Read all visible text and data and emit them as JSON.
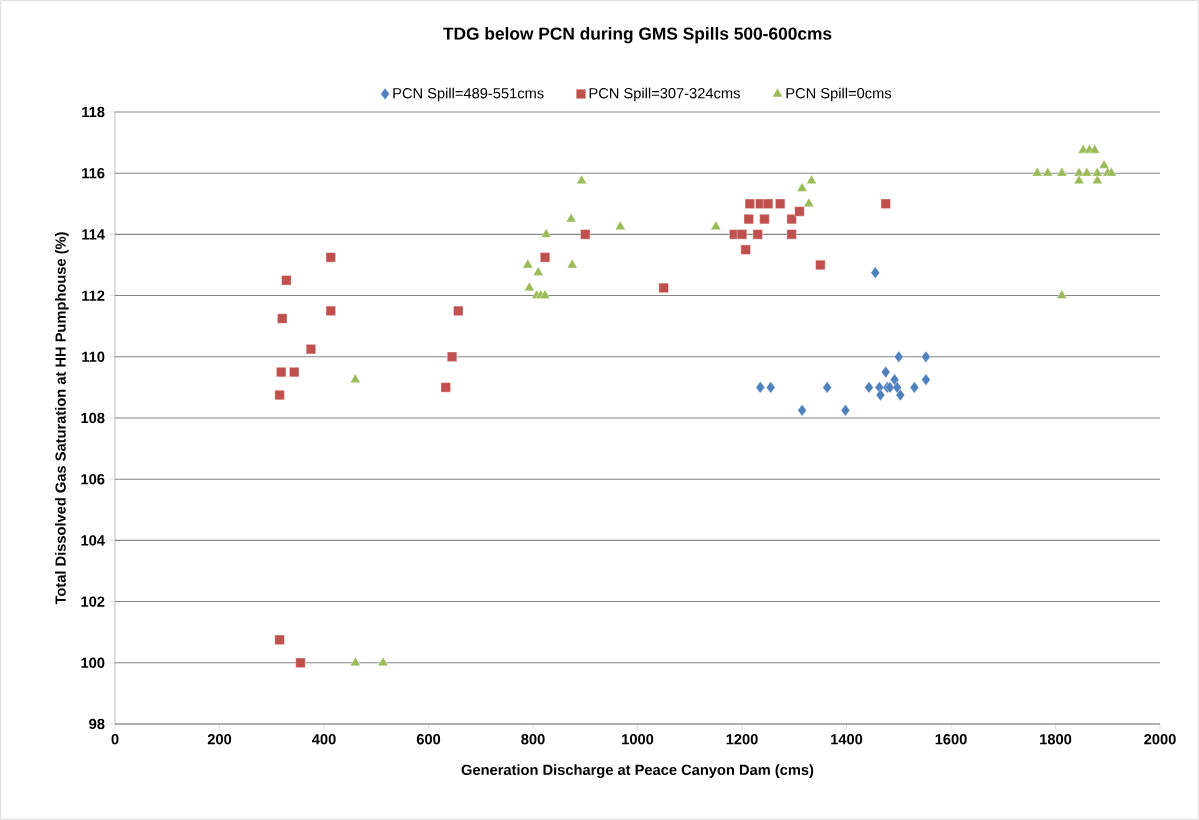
{
  "chart_data": {
    "type": "scatter",
    "title": "TDG below PCN during GMS Spills 500-600cms",
    "xlabel": "Generation Discharge at Peace Canyon Dam (cms)",
    "ylabel": "Total Dissolved Gas  Saturation at HH Pumphouse (%)",
    "xlim": [
      0,
      2000
    ],
    "ylim": [
      98,
      118
    ],
    "xticks": [
      0,
      200,
      400,
      600,
      800,
      1000,
      1200,
      1400,
      1600,
      1800,
      2000
    ],
    "yticks": [
      98,
      100,
      102,
      104,
      106,
      108,
      110,
      112,
      114,
      116,
      118
    ],
    "grid": "y",
    "legend": "top",
    "series": [
      {
        "name": "PCN Spill=489-551cms",
        "color": "#4f81bd",
        "marker": "diamond",
        "x": [
          1455,
          1235,
          1255,
          1363,
          1315,
          1398,
          1443,
          1463,
          1465,
          1475,
          1478,
          1483,
          1492,
          1497,
          1500,
          1503,
          1530,
          1552,
          1552
        ],
        "values": [
          112.75,
          109,
          109,
          109,
          108.25,
          108.25,
          109,
          109,
          108.75,
          109.5,
          109,
          109,
          109.25,
          109,
          110,
          108.75,
          109,
          109.25,
          110
        ]
      },
      {
        "name": "PCN Spill=307-324cms",
        "color": "#c0504d",
        "marker": "square",
        "x": [
          315,
          318,
          320,
          328,
          343,
          375,
          413,
          413,
          633,
          645,
          657,
          823,
          900,
          1050,
          1185,
          1207,
          1213,
          1215,
          1230,
          1235,
          1243,
          1250,
          1273,
          1295,
          1295,
          1310,
          1350,
          1475,
          315,
          355,
          1200
        ],
        "values": [
          108.75,
          109.5,
          111.25,
          112.5,
          109.5,
          110.25,
          113.25,
          111.5,
          109,
          110,
          111.5,
          113.25,
          114,
          112.25,
          114,
          113.5,
          114.5,
          115,
          114,
          115,
          114.5,
          115,
          115,
          114.5,
          114,
          114.75,
          113,
          115,
          100.75,
          100,
          114
        ]
      },
      {
        "name": "PCN Spill=0cms",
        "color": "#9bbb59",
        "marker": "triangle",
        "x": [
          460,
          460,
          513,
          790,
          793,
          807,
          810,
          815,
          823,
          825,
          873,
          875,
          893,
          967,
          1150,
          1315,
          1328,
          1333,
          1765,
          1785,
          1812,
          1812,
          1845,
          1845,
          1853,
          1860,
          1865,
          1875,
          1880,
          1880,
          1893,
          1900,
          1907
        ],
        "values": [
          109.25,
          100,
          100,
          113,
          112.25,
          112,
          112.75,
          112,
          112,
          114,
          114.5,
          113,
          115.75,
          114.25,
          114.25,
          115.5,
          115,
          115.75,
          116,
          116,
          116,
          112,
          116,
          115.75,
          116.75,
          116,
          116.75,
          116.75,
          115.75,
          116,
          116.25,
          116,
          116
        ]
      }
    ]
  }
}
